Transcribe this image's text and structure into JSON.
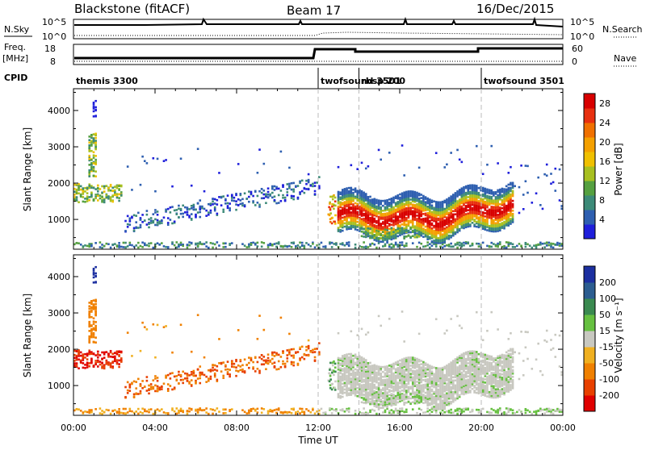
{
  "header": {
    "title": "Blackstone (fitACF)",
    "beam": "Beam 17",
    "date": "16/Dec/2015"
  },
  "panels": {
    "nsky_label": "N.Sky",
    "nsearch_label": "N.Search",
    "freq_label": "Freq.",
    "freq_unit": "[MHz]",
    "nave_label": "Nave",
    "cpid_label": "CPID",
    "nsky_ticks": [
      "10^5",
      "10^0"
    ],
    "nsearch_ticks": [
      "10^5",
      "10^0"
    ],
    "freq_ticks": [
      "18",
      "8"
    ],
    "nave_ticks": [
      "60",
      "0"
    ]
  },
  "cpid_segments": [
    {
      "start": 0,
      "label": "themis 3300"
    },
    {
      "start": 12,
      "label": "twofsound 3501"
    },
    {
      "start": 14,
      "label": "rbsp 200"
    },
    {
      "start": 20,
      "label": "twofsound 3501"
    }
  ],
  "chart_data": [
    {
      "type": "heatmap",
      "ylabel": "Slant Range [km]",
      "xlabel": "Time UT",
      "x_ticks": [
        "00:00",
        "04:00",
        "08:00",
        "12:00",
        "16:00",
        "20:00",
        "00:00"
      ],
      "y_ticks": [
        1000,
        2000,
        3000,
        4000
      ],
      "ylim": [
        180,
        4600
      ],
      "xlim_hours": [
        0,
        24
      ],
      "colorbar": {
        "label": "Power [dB]",
        "ticks": [
          4,
          8,
          12,
          16,
          20,
          24,
          28
        ],
        "range": [
          0,
          30
        ],
        "colors": [
          "#1f1fdb",
          "#2e5fb0",
          "#3c8a78",
          "#55a040",
          "#a8c020",
          "#f0c000",
          "#f4a000",
          "#f07000",
          "#e83010",
          "#d80000"
        ]
      }
    },
    {
      "type": "heatmap",
      "ylabel": "Slant Range [km]",
      "xlabel": "Time UT",
      "x_ticks": [
        "00:00",
        "04:00",
        "08:00",
        "12:00",
        "16:00",
        "20:00",
        "00:00"
      ],
      "y_ticks": [
        1000,
        2000,
        3000,
        4000
      ],
      "ylim": [
        180,
        4600
      ],
      "xlim_hours": [
        0,
        24
      ],
      "colorbar": {
        "label": "Velocity [m s⁻¹]",
        "ticks": [
          "200",
          "100",
          "50",
          "15",
          "-15",
          "-50",
          "-100",
          "-200"
        ],
        "colors": [
          "#1c2fa0",
          "#2c5d90",
          "#3a8a50",
          "#66c040",
          "#c8c8c0",
          "#f0b020",
          "#f08000",
          "#e84000",
          "#e00000"
        ]
      }
    }
  ]
}
